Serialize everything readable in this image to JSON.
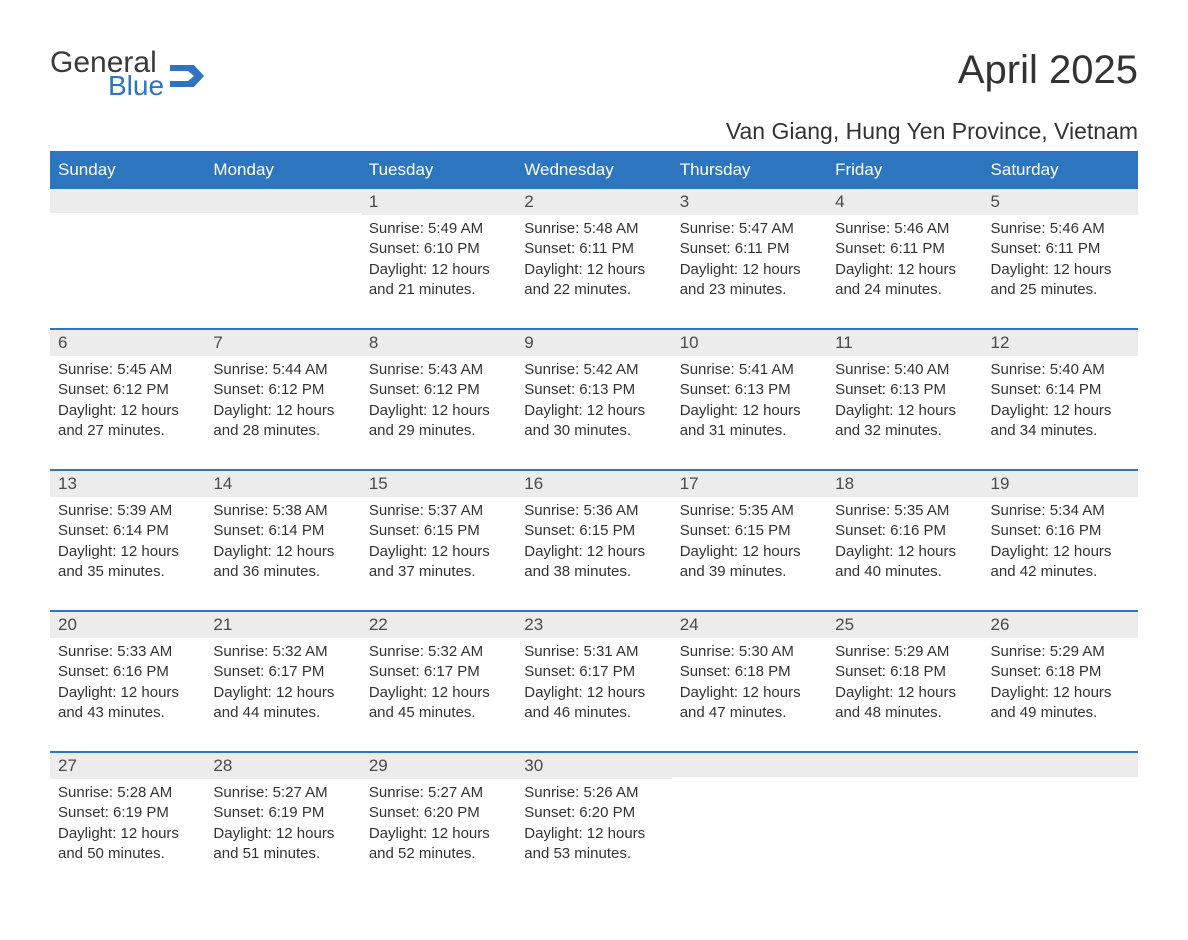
{
  "brand": {
    "general": "General",
    "blue": "Blue"
  },
  "title": "April 2025",
  "location": "Van Giang, Hung Yen Province, Vietnam",
  "colors": {
    "accent": "#2d76bf",
    "header_text": "#ffffff",
    "row_alt": "#ececec",
    "body_bg": "#ffffff",
    "text": "#333333"
  },
  "weekdays": [
    "Sunday",
    "Monday",
    "Tuesday",
    "Wednesday",
    "Thursday",
    "Friday",
    "Saturday"
  ],
  "weeks": [
    [
      {
        "day": "",
        "sunrise": "",
        "sunset": "",
        "daylight": ""
      },
      {
        "day": "",
        "sunrise": "",
        "sunset": "",
        "daylight": ""
      },
      {
        "day": "1",
        "sunrise": "Sunrise: 5:49 AM",
        "sunset": "Sunset: 6:10 PM",
        "daylight": "Daylight: 12 hours and 21 minutes."
      },
      {
        "day": "2",
        "sunrise": "Sunrise: 5:48 AM",
        "sunset": "Sunset: 6:11 PM",
        "daylight": "Daylight: 12 hours and 22 minutes."
      },
      {
        "day": "3",
        "sunrise": "Sunrise: 5:47 AM",
        "sunset": "Sunset: 6:11 PM",
        "daylight": "Daylight: 12 hours and 23 minutes."
      },
      {
        "day": "4",
        "sunrise": "Sunrise: 5:46 AM",
        "sunset": "Sunset: 6:11 PM",
        "daylight": "Daylight: 12 hours and 24 minutes."
      },
      {
        "day": "5",
        "sunrise": "Sunrise: 5:46 AM",
        "sunset": "Sunset: 6:11 PM",
        "daylight": "Daylight: 12 hours and 25 minutes."
      }
    ],
    [
      {
        "day": "6",
        "sunrise": "Sunrise: 5:45 AM",
        "sunset": "Sunset: 6:12 PM",
        "daylight": "Daylight: 12 hours and 27 minutes."
      },
      {
        "day": "7",
        "sunrise": "Sunrise: 5:44 AM",
        "sunset": "Sunset: 6:12 PM",
        "daylight": "Daylight: 12 hours and 28 minutes."
      },
      {
        "day": "8",
        "sunrise": "Sunrise: 5:43 AM",
        "sunset": "Sunset: 6:12 PM",
        "daylight": "Daylight: 12 hours and 29 minutes."
      },
      {
        "day": "9",
        "sunrise": "Sunrise: 5:42 AM",
        "sunset": "Sunset: 6:13 PM",
        "daylight": "Daylight: 12 hours and 30 minutes."
      },
      {
        "day": "10",
        "sunrise": "Sunrise: 5:41 AM",
        "sunset": "Sunset: 6:13 PM",
        "daylight": "Daylight: 12 hours and 31 minutes."
      },
      {
        "day": "11",
        "sunrise": "Sunrise: 5:40 AM",
        "sunset": "Sunset: 6:13 PM",
        "daylight": "Daylight: 12 hours and 32 minutes."
      },
      {
        "day": "12",
        "sunrise": "Sunrise: 5:40 AM",
        "sunset": "Sunset: 6:14 PM",
        "daylight": "Daylight: 12 hours and 34 minutes."
      }
    ],
    [
      {
        "day": "13",
        "sunrise": "Sunrise: 5:39 AM",
        "sunset": "Sunset: 6:14 PM",
        "daylight": "Daylight: 12 hours and 35 minutes."
      },
      {
        "day": "14",
        "sunrise": "Sunrise: 5:38 AM",
        "sunset": "Sunset: 6:14 PM",
        "daylight": "Daylight: 12 hours and 36 minutes."
      },
      {
        "day": "15",
        "sunrise": "Sunrise: 5:37 AM",
        "sunset": "Sunset: 6:15 PM",
        "daylight": "Daylight: 12 hours and 37 minutes."
      },
      {
        "day": "16",
        "sunrise": "Sunrise: 5:36 AM",
        "sunset": "Sunset: 6:15 PM",
        "daylight": "Daylight: 12 hours and 38 minutes."
      },
      {
        "day": "17",
        "sunrise": "Sunrise: 5:35 AM",
        "sunset": "Sunset: 6:15 PM",
        "daylight": "Daylight: 12 hours and 39 minutes."
      },
      {
        "day": "18",
        "sunrise": "Sunrise: 5:35 AM",
        "sunset": "Sunset: 6:16 PM",
        "daylight": "Daylight: 12 hours and 40 minutes."
      },
      {
        "day": "19",
        "sunrise": "Sunrise: 5:34 AM",
        "sunset": "Sunset: 6:16 PM",
        "daylight": "Daylight: 12 hours and 42 minutes."
      }
    ],
    [
      {
        "day": "20",
        "sunrise": "Sunrise: 5:33 AM",
        "sunset": "Sunset: 6:16 PM",
        "daylight": "Daylight: 12 hours and 43 minutes."
      },
      {
        "day": "21",
        "sunrise": "Sunrise: 5:32 AM",
        "sunset": "Sunset: 6:17 PM",
        "daylight": "Daylight: 12 hours and 44 minutes."
      },
      {
        "day": "22",
        "sunrise": "Sunrise: 5:32 AM",
        "sunset": "Sunset: 6:17 PM",
        "daylight": "Daylight: 12 hours and 45 minutes."
      },
      {
        "day": "23",
        "sunrise": "Sunrise: 5:31 AM",
        "sunset": "Sunset: 6:17 PM",
        "daylight": "Daylight: 12 hours and 46 minutes."
      },
      {
        "day": "24",
        "sunrise": "Sunrise: 5:30 AM",
        "sunset": "Sunset: 6:18 PM",
        "daylight": "Daylight: 12 hours and 47 minutes."
      },
      {
        "day": "25",
        "sunrise": "Sunrise: 5:29 AM",
        "sunset": "Sunset: 6:18 PM",
        "daylight": "Daylight: 12 hours and 48 minutes."
      },
      {
        "day": "26",
        "sunrise": "Sunrise: 5:29 AM",
        "sunset": "Sunset: 6:18 PM",
        "daylight": "Daylight: 12 hours and 49 minutes."
      }
    ],
    [
      {
        "day": "27",
        "sunrise": "Sunrise: 5:28 AM",
        "sunset": "Sunset: 6:19 PM",
        "daylight": "Daylight: 12 hours and 50 minutes."
      },
      {
        "day": "28",
        "sunrise": "Sunrise: 5:27 AM",
        "sunset": "Sunset: 6:19 PM",
        "daylight": "Daylight: 12 hours and 51 minutes."
      },
      {
        "day": "29",
        "sunrise": "Sunrise: 5:27 AM",
        "sunset": "Sunset: 6:20 PM",
        "daylight": "Daylight: 12 hours and 52 minutes."
      },
      {
        "day": "30",
        "sunrise": "Sunrise: 5:26 AM",
        "sunset": "Sunset: 6:20 PM",
        "daylight": "Daylight: 12 hours and 53 minutes."
      },
      {
        "day": "",
        "sunrise": "",
        "sunset": "",
        "daylight": ""
      },
      {
        "day": "",
        "sunrise": "",
        "sunset": "",
        "daylight": ""
      },
      {
        "day": "",
        "sunrise": "",
        "sunset": "",
        "daylight": ""
      }
    ]
  ]
}
